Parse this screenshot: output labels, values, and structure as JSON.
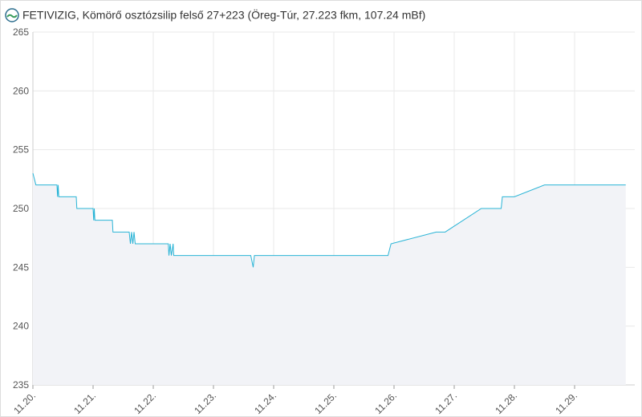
{
  "chart_data": {
    "type": "area-line",
    "title": "FETIVIZIG, Kömörő osztózsilip felső 27+223 (Öreg-Túr, 27.223 fkm, 107.24 mBf)",
    "x": [
      20,
      20.05,
      20.4,
      20.41,
      20.42,
      20.43,
      20.44,
      20.72,
      20.73,
      21.0,
      21.01,
      21.02,
      21.03,
      21.04,
      21.32,
      21.33,
      21.6,
      21.62,
      21.64,
      21.66,
      21.68,
      21.7,
      22.25,
      22.26,
      22.28,
      22.3,
      22.33,
      22.34,
      23.62,
      23.66,
      23.68,
      25.9,
      25.95,
      26.7,
      26.85,
      27.45,
      27.78,
      27.8,
      28.0,
      28.5,
      29.85
    ],
    "series": [
      {
        "color": "#2ab4d6",
        "fill": "#f2f3f7",
        "values": [
          253,
          252,
          252,
          251,
          252,
          251,
          251,
          251,
          250,
          250,
          249,
          250,
          249,
          249,
          249,
          248,
          248,
          247,
          248,
          247,
          248,
          247,
          247,
          246,
          247,
          246,
          247,
          246,
          246,
          245,
          246,
          246,
          247,
          248,
          248,
          250,
          250,
          251,
          251,
          252,
          252
        ]
      }
    ],
    "xlim": [
      20,
      30
    ],
    "xticks": [
      {
        "value": 20,
        "label": "11.20."
      },
      {
        "value": 21,
        "label": "11.21."
      },
      {
        "value": 22,
        "label": "11.22."
      },
      {
        "value": 23,
        "label": "11.23."
      },
      {
        "value": 24,
        "label": "11.24."
      },
      {
        "value": 25,
        "label": "11.25."
      },
      {
        "value": 26,
        "label": "11.26."
      },
      {
        "value": 27,
        "label": "11.27."
      },
      {
        "value": 28,
        "label": "11.28."
      },
      {
        "value": 29,
        "label": "11.29."
      }
    ],
    "ylim": [
      235,
      265
    ],
    "yticks": [
      235,
      240,
      245,
      250,
      255,
      260,
      265
    ],
    "grid": true
  }
}
